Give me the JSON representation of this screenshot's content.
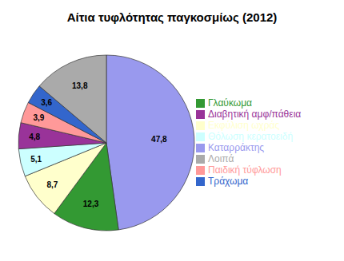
{
  "chart_data": {
    "type": "pie",
    "title": "Αίτια τυφλότητας παγκοσμίως (2012)",
    "categories": [
      "Καταρράκτης",
      "Γλαύκωμα",
      "Εκφύλιση ωχράς",
      "Θόλωση κερατοειδή",
      "Διαβητική αμφ/πάθεια",
      "Παιδική τύφλωση",
      "Τράχωμα",
      "Λοιπά"
    ],
    "values": [
      47.8,
      12.3,
      8.7,
      5.1,
      4.8,
      3.9,
      3.6,
      13.8
    ],
    "value_labels": [
      "47,8",
      "12,3",
      "8,7",
      "5,1",
      "4,8",
      "3,9",
      "3,6",
      "13,8"
    ],
    "colors": [
      "#9999ee",
      "#339933",
      "#ffffcc",
      "#ccffff",
      "#993399",
      "#ff9999",
      "#3366cc",
      "#aaaaaa"
    ],
    "data_labels": true,
    "legend": "right"
  }
}
